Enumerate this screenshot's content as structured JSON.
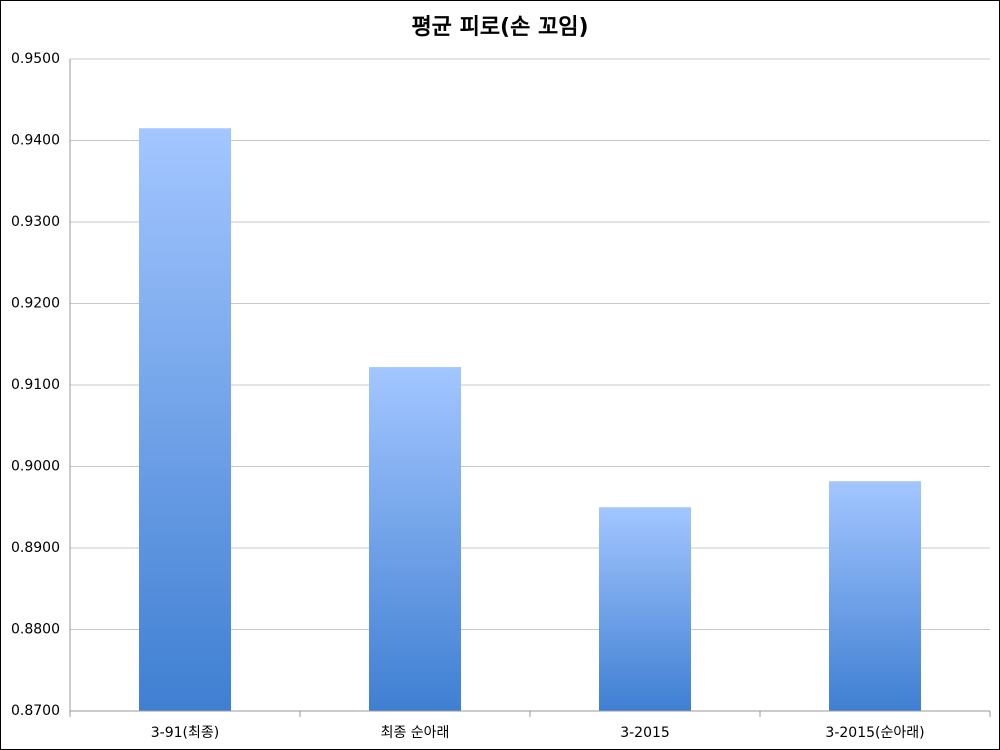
{
  "chart_data": {
    "type": "bar",
    "title": "평균 피로(손 꼬임)",
    "categories": [
      "3-91(최종)",
      "최종 순아래",
      "3-2015",
      "3-2015(순아래)"
    ],
    "values": [
      0.9415,
      0.9122,
      0.895,
      0.8982
    ],
    "color": [
      "#a3c6ff",
      "#3f7fd2"
    ],
    "ylim": [
      0.87,
      0.95
    ],
    "yticks": [
      {
        "value": 0.87,
        "label": "0.8700"
      },
      {
        "value": 0.88,
        "label": "0.8800"
      },
      {
        "value": 0.89,
        "label": "0.8900"
      },
      {
        "value": 0.9,
        "label": "0.9000"
      },
      {
        "value": 0.91,
        "label": "0.9100"
      },
      {
        "value": 0.92,
        "label": "0.9200"
      },
      {
        "value": 0.93,
        "label": "0.9300"
      },
      {
        "value": 0.94,
        "label": "0.9400"
      },
      {
        "value": 0.95,
        "label": "0.9500"
      }
    ],
    "grid": true
  }
}
